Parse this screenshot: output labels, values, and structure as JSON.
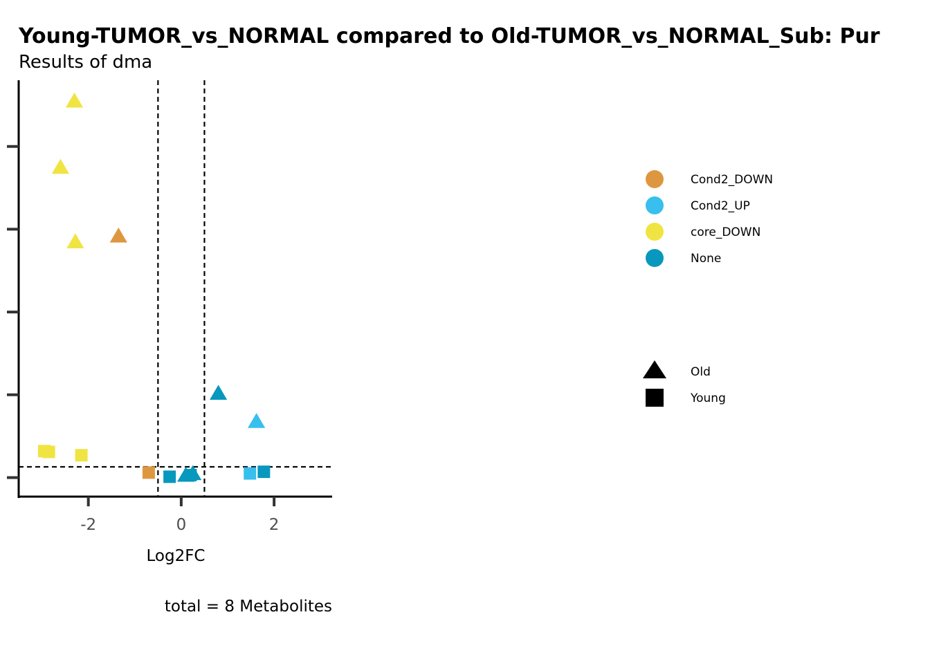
{
  "chart_data": {
    "type": "scatter",
    "title": "Young-TUMOR_vs_NORMAL compared to Old-TUMOR_vs_NORMAL_Sub: Pur",
    "subtitle": "Results of dma",
    "xlabel": "Log2FC",
    "ylabel": "",
    "caption": "total = 8 Metabolites",
    "xlim": [
      -3.5,
      3.25
    ],
    "ylim": [
      -0.23,
      4.8
    ],
    "x_ticks": [
      -2,
      0,
      2
    ],
    "x_tick_labels": [
      "-2",
      "0",
      "2"
    ],
    "y_ticks": [
      0,
      1,
      2,
      3,
      4
    ],
    "y_tick_labels": [
      "",
      "",
      "",
      "",
      ""
    ],
    "vlines": [
      -0.5,
      0.5
    ],
    "hline": 0.13,
    "grid": false,
    "legend_position": "right",
    "color_legend": [
      {
        "name": "Cond2_DOWN",
        "color": "#DE9740"
      },
      {
        "name": "Cond2_UP",
        "color": "#38BFEE"
      },
      {
        "name": "core_DOWN",
        "color": "#F0E442"
      },
      {
        "name": "None",
        "color": "#0898BE"
      }
    ],
    "shape_legend": [
      {
        "name": "Old",
        "shape": "triangle"
      },
      {
        "name": "Young",
        "shape": "square"
      }
    ],
    "series": [
      {
        "x": -2.3,
        "y": 4.55,
        "group": "core_DOWN",
        "shape": "Old"
      },
      {
        "x": -2.6,
        "y": 3.75,
        "group": "core_DOWN",
        "shape": "Old"
      },
      {
        "x": -2.28,
        "y": 2.85,
        "group": "core_DOWN",
        "shape": "Old"
      },
      {
        "x": -1.35,
        "y": 2.92,
        "group": "Cond2_DOWN",
        "shape": "Old"
      },
      {
        "x": 0.8,
        "y": 1.02,
        "group": "None",
        "shape": "Old"
      },
      {
        "x": 1.62,
        "y": 0.68,
        "group": "Cond2_UP",
        "shape": "Old"
      },
      {
        "x": 0.25,
        "y": 0.05,
        "group": "None",
        "shape": "Old"
      },
      {
        "x": 0.1,
        "y": 0.03,
        "group": "None",
        "shape": "Old"
      },
      {
        "x": -2.95,
        "y": 0.32,
        "group": "core_DOWN",
        "shape": "Young"
      },
      {
        "x": -2.85,
        "y": 0.31,
        "group": "core_DOWN",
        "shape": "Young"
      },
      {
        "x": -2.15,
        "y": 0.27,
        "group": "core_DOWN",
        "shape": "Young"
      },
      {
        "x": -0.7,
        "y": 0.06,
        "group": "Cond2_DOWN",
        "shape": "Young"
      },
      {
        "x": -0.25,
        "y": 0.01,
        "group": "None",
        "shape": "Young"
      },
      {
        "x": 0.2,
        "y": 0.03,
        "group": "None",
        "shape": "Young"
      },
      {
        "x": 1.48,
        "y": 0.05,
        "group": "Cond2_UP",
        "shape": "Young"
      },
      {
        "x": 1.78,
        "y": 0.07,
        "group": "None",
        "shape": "Young"
      }
    ]
  }
}
